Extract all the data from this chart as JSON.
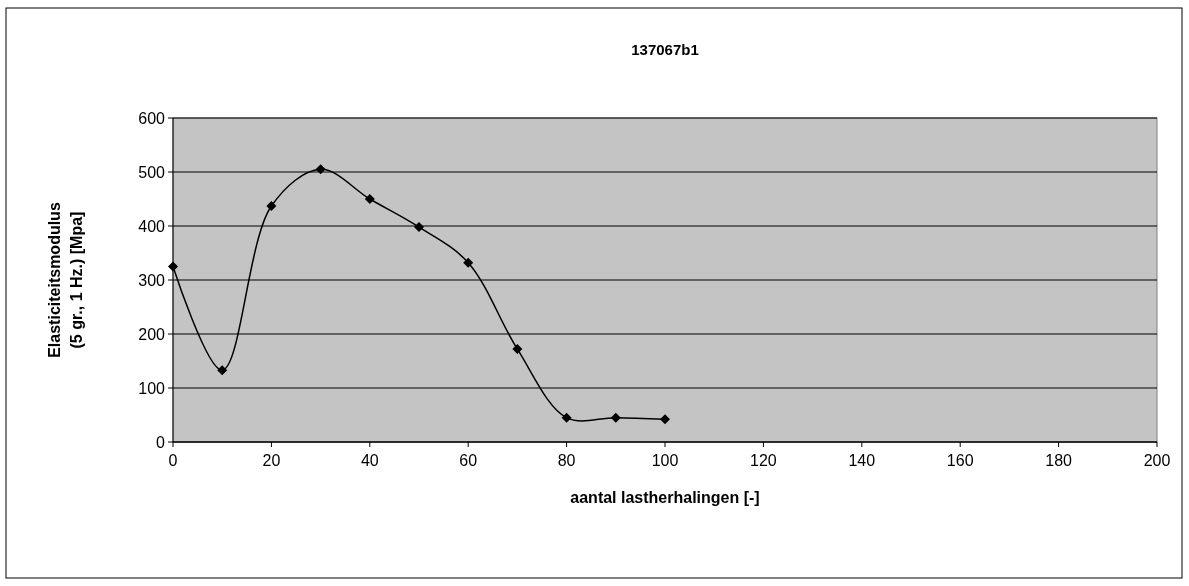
{
  "chart_data": {
    "type": "line",
    "title": "137067b1",
    "xlabel": "aantal lastherhalingen [-]",
    "ylabel": "Elasticiteitsmodulus\n(5 gr., 1 Hz.) [Mpa]",
    "x": [
      0,
      10,
      20,
      30,
      40,
      50,
      60,
      70,
      80,
      90,
      100
    ],
    "series": [
      {
        "color": "#000000",
        "values": [
          325,
          133,
          437,
          505,
          450,
          398,
          332,
          172,
          45,
          45,
          42
        ]
      }
    ],
    "xlim": [
      0,
      200
    ],
    "xticks": [
      0,
      20,
      40,
      60,
      80,
      100,
      120,
      140,
      160,
      180,
      200
    ],
    "ylim": [
      0,
      600
    ],
    "yticks": [
      0,
      100,
      200,
      300,
      400,
      500,
      600
    ],
    "grid": "y",
    "marker": "diamond",
    "line_style": "solid"
  }
}
